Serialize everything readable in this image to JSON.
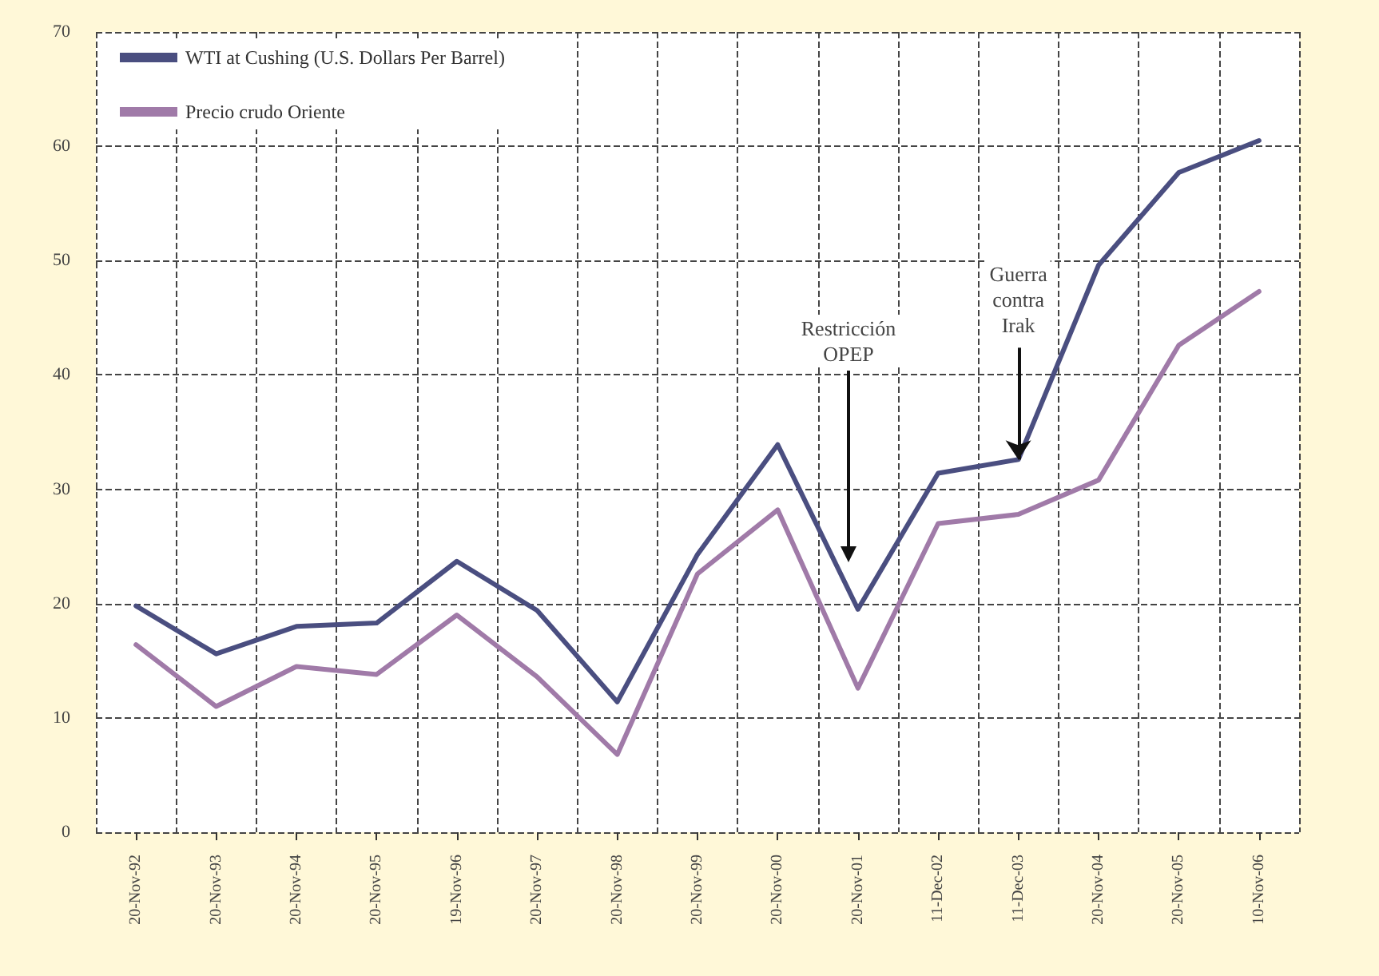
{
  "chart_data": {
    "type": "line",
    "categories": [
      "20-Nov-92",
      "20-Nov-93",
      "20-Nov-94",
      "20-Nov-95",
      "19-Nov-96",
      "20-Nov-97",
      "20-Nov-98",
      "20-Nov-99",
      "20-Nov-00",
      "20-Nov-01",
      "11-Dec-02",
      "11-Dec-03",
      "20-Nov-04",
      "20-Nov-05",
      "10-Nov-06"
    ],
    "series": [
      {
        "name": "WTI at Cushing (U.S. Dollars Per Barrel)",
        "color": "#4a4e80",
        "values": [
          19.8,
          15.6,
          18,
          18.3,
          23.7,
          19.4,
          11.4,
          24.3,
          33.9,
          19.5,
          31.4,
          32.6,
          49.6,
          57.7,
          60.5
        ]
      },
      {
        "name": "Precio crudo Oriente",
        "color": "#a07aa8",
        "values": [
          16.4,
          11,
          14.5,
          13.8,
          19,
          13.6,
          6.8,
          22.6,
          28.2,
          12.6,
          27,
          27.8,
          30.8,
          42.6,
          47.3
        ]
      }
    ],
    "annotations": [
      "Restricción\nOPEP",
      {
        "text": "Guerra\ncontra\nIrak",
        "x": "11-Dec-03",
        "y": 32.6
      }
    ],
    "ylim": [
      0,
      70
    ],
    "yticks": [
      0,
      10,
      20,
      30,
      40,
      50,
      60,
      70
    ],
    "grid": true,
    "legend": "top left",
    "marker": "none",
    "line_style": "solid"
  }
}
